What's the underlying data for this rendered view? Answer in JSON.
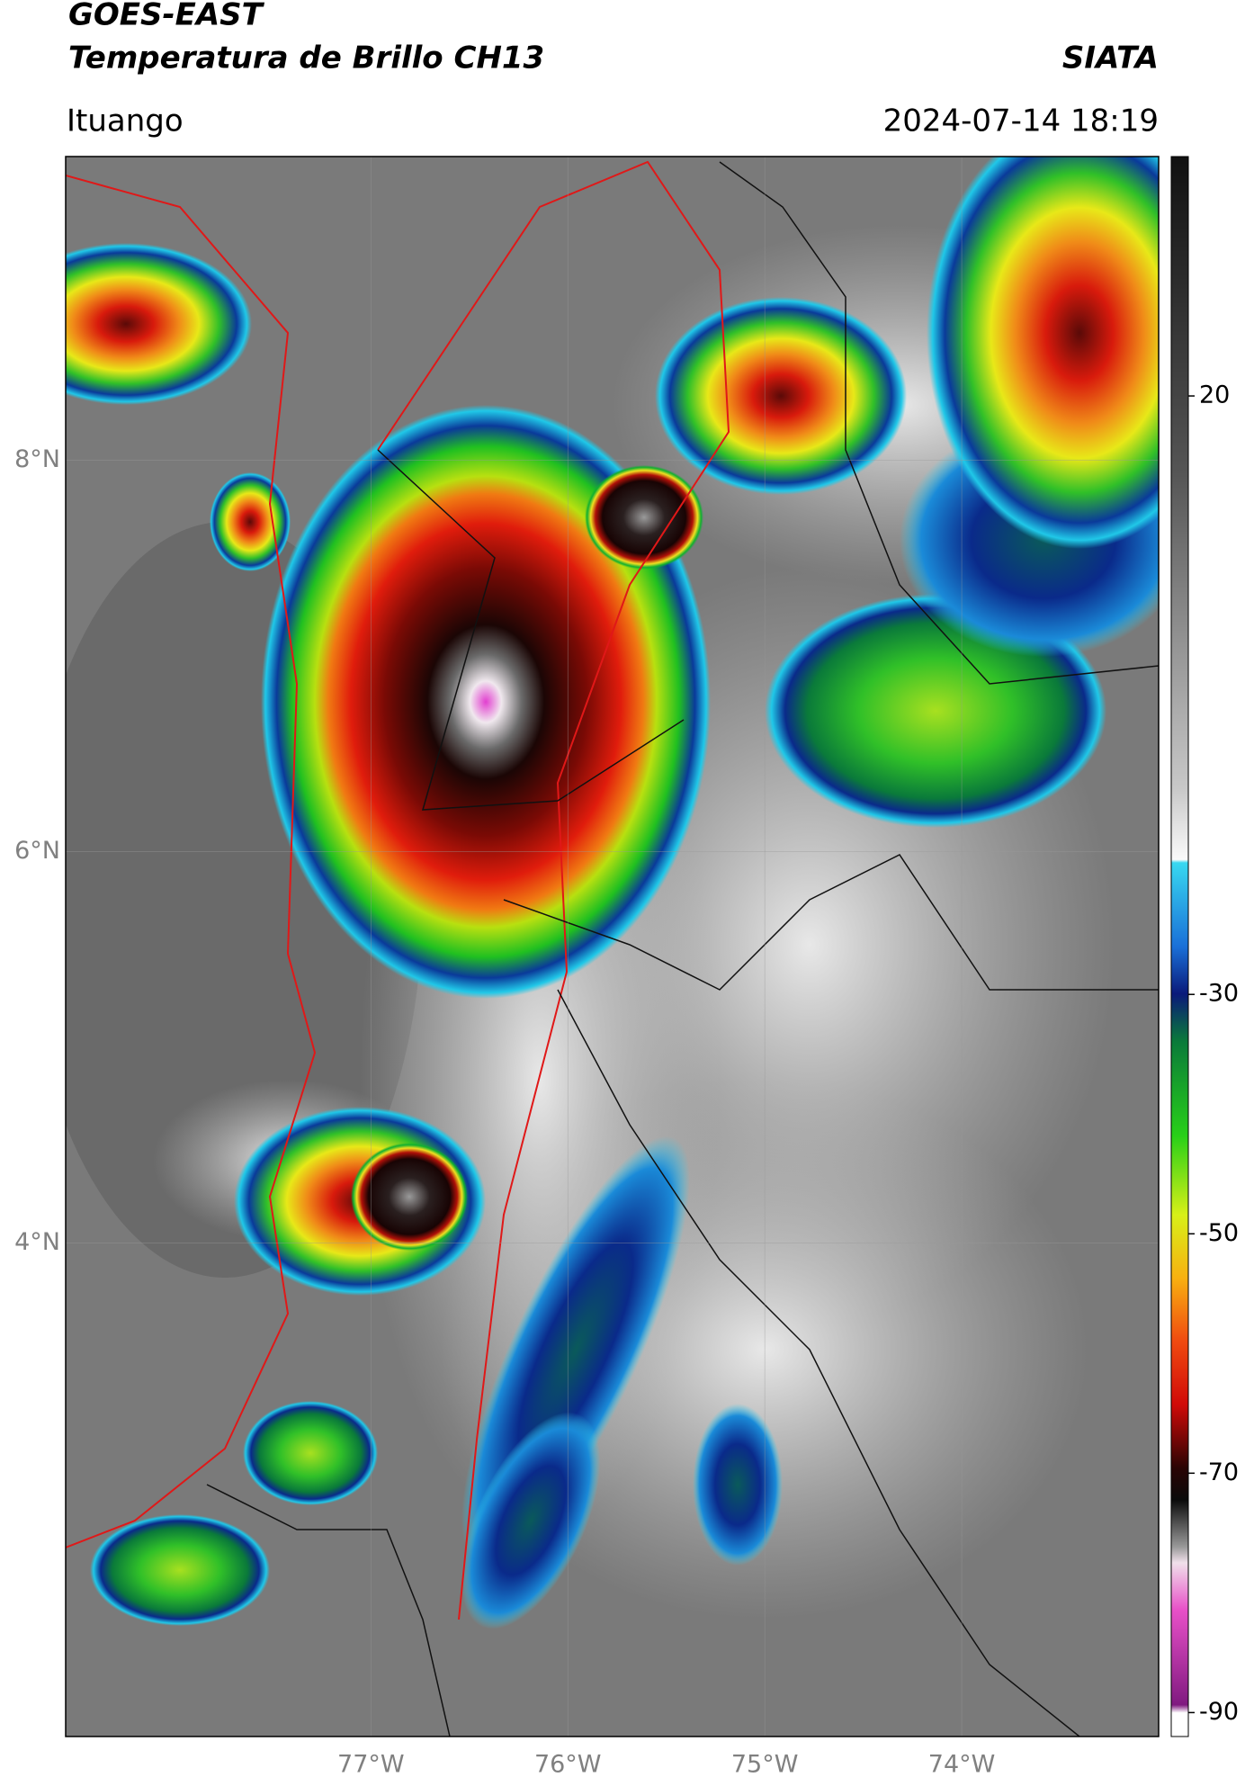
{
  "header": {
    "title": "GOES-EAST",
    "subtitle": "Temperatura de Brillo CH13",
    "brand": "SIATA",
    "location": "Ituango",
    "datetime": "2024-07-14 18:19"
  },
  "map": {
    "lonlim": [
      -78.55,
      -73.0
    ],
    "latlim": [
      1.48,
      9.55
    ],
    "yticks": [
      {
        "value": 8,
        "label": "8°N"
      },
      {
        "value": 6,
        "label": "6°N"
      },
      {
        "value": 4,
        "label": "4°N"
      }
    ],
    "xticks": [
      {
        "value": -77,
        "label": "77°W"
      },
      {
        "value": -76,
        "label": "76°W"
      },
      {
        "value": -75,
        "label": "75°W"
      },
      {
        "value": -74,
        "label": "74°W"
      }
    ],
    "grid": true
  },
  "colorbar": {
    "range": [
      -92,
      40
    ],
    "ticks": [
      20,
      -30,
      -50,
      -70,
      -90
    ]
  }
}
